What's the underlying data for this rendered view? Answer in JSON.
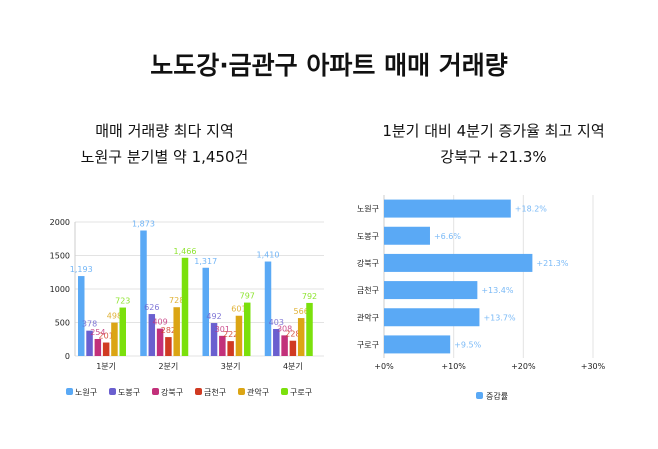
{
  "title": "노도강·금관구 아파트 매매 거래량",
  "left_panel": {
    "heading": "매매 거래량 최다 지역",
    "subheading": "노원구 분기별 약 1,450건"
  },
  "right_panel": {
    "heading": "1분기 대비 4분기 증가율 최고 지역",
    "subheading": "강북구 +21.3%"
  },
  "chart_data": [
    {
      "type": "bar",
      "categories": [
        "1분기",
        "2분기",
        "3분기",
        "4분기"
      ],
      "ylim": [
        0,
        2000
      ],
      "yticks": [
        "0",
        "500",
        "1000",
        "1500",
        "2000"
      ],
      "grid": true,
      "legend": "bottom",
      "series": [
        {
          "name": "노원구",
          "color": "#5aa9f5",
          "values": [
            1193,
            1873,
            1317,
            1410
          ],
          "labels": [
            "1,193",
            "1,873",
            "1,317",
            "1,410"
          ]
        },
        {
          "name": "도봉구",
          "color": "#6a5fcf",
          "values": [
            378,
            626,
            492,
            403
          ],
          "labels": [
            "378",
            "626",
            "492",
            "403"
          ]
        },
        {
          "name": "강북구",
          "color": "#c2307a",
          "values": [
            254,
            409,
            301,
            308
          ],
          "labels": [
            "254",
            "409",
            "301",
            "308"
          ]
        },
        {
          "name": "금천구",
          "color": "#d03a22",
          "values": [
            201,
            282,
            222,
            228
          ],
          "labels": [
            "201",
            "282",
            "222",
            "228"
          ]
        },
        {
          "name": "관악구",
          "color": "#dba514",
          "values": [
            498,
            728,
            601,
            566
          ],
          "labels": [
            "498",
            "728",
            "601",
            "566"
          ]
        },
        {
          "name": "구로구",
          "color": "#7be00c",
          "values": [
            723,
            1466,
            797,
            792
          ],
          "labels": [
            "723",
            "1,466",
            "797",
            "792"
          ]
        }
      ]
    },
    {
      "type": "bar",
      "orientation": "horizontal",
      "categories": [
        "노원구",
        "도봉구",
        "강북구",
        "금천구",
        "관악구",
        "구로구"
      ],
      "xlim": [
        0,
        30
      ],
      "xticks": [
        "+0%",
        "+10%",
        "+20%",
        "+30%"
      ],
      "grid": true,
      "legend": "bottom",
      "series": [
        {
          "name": "증감률",
          "color": "#5aa9f5",
          "values": [
            18.2,
            6.6,
            21.3,
            13.4,
            13.7,
            9.5
          ],
          "labels": [
            "+18.2%",
            "+6.6%",
            "+21.3%",
            "+13.4%",
            "+13.7%",
            "+9.5%"
          ]
        }
      ]
    }
  ]
}
